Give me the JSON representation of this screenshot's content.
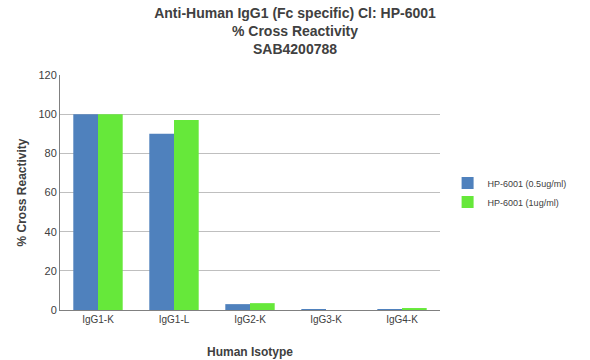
{
  "chart_data": {
    "type": "bar",
    "title": "Anti-Human IgG1 (Fc specific) Cl: HP-6001\n% Cross Reactivity\nSAB4200788",
    "x_label": "Human Isotype",
    "y_label": "% Cross Reactivity",
    "categories": [
      "IgG1-K",
      "IgG1-L",
      "IgG2-K",
      "IgG3-K",
      "IgG4-K"
    ],
    "series": [
      {
        "name": "HP-6001 (0.5ug/ml)",
        "color": "#4f81bd",
        "values": [
          100,
          90,
          3,
          0.5,
          0.5
        ]
      },
      {
        "name": "HP-6001 (1ug/ml)",
        "color": "#66e83a",
        "values": [
          100,
          97,
          3.5,
          0,
          1
        ]
      }
    ],
    "ylim": [
      0,
      120
    ],
    "yticks": [
      0,
      20,
      40,
      60,
      80,
      100,
      120
    ],
    "grid": true,
    "legend": "right"
  }
}
